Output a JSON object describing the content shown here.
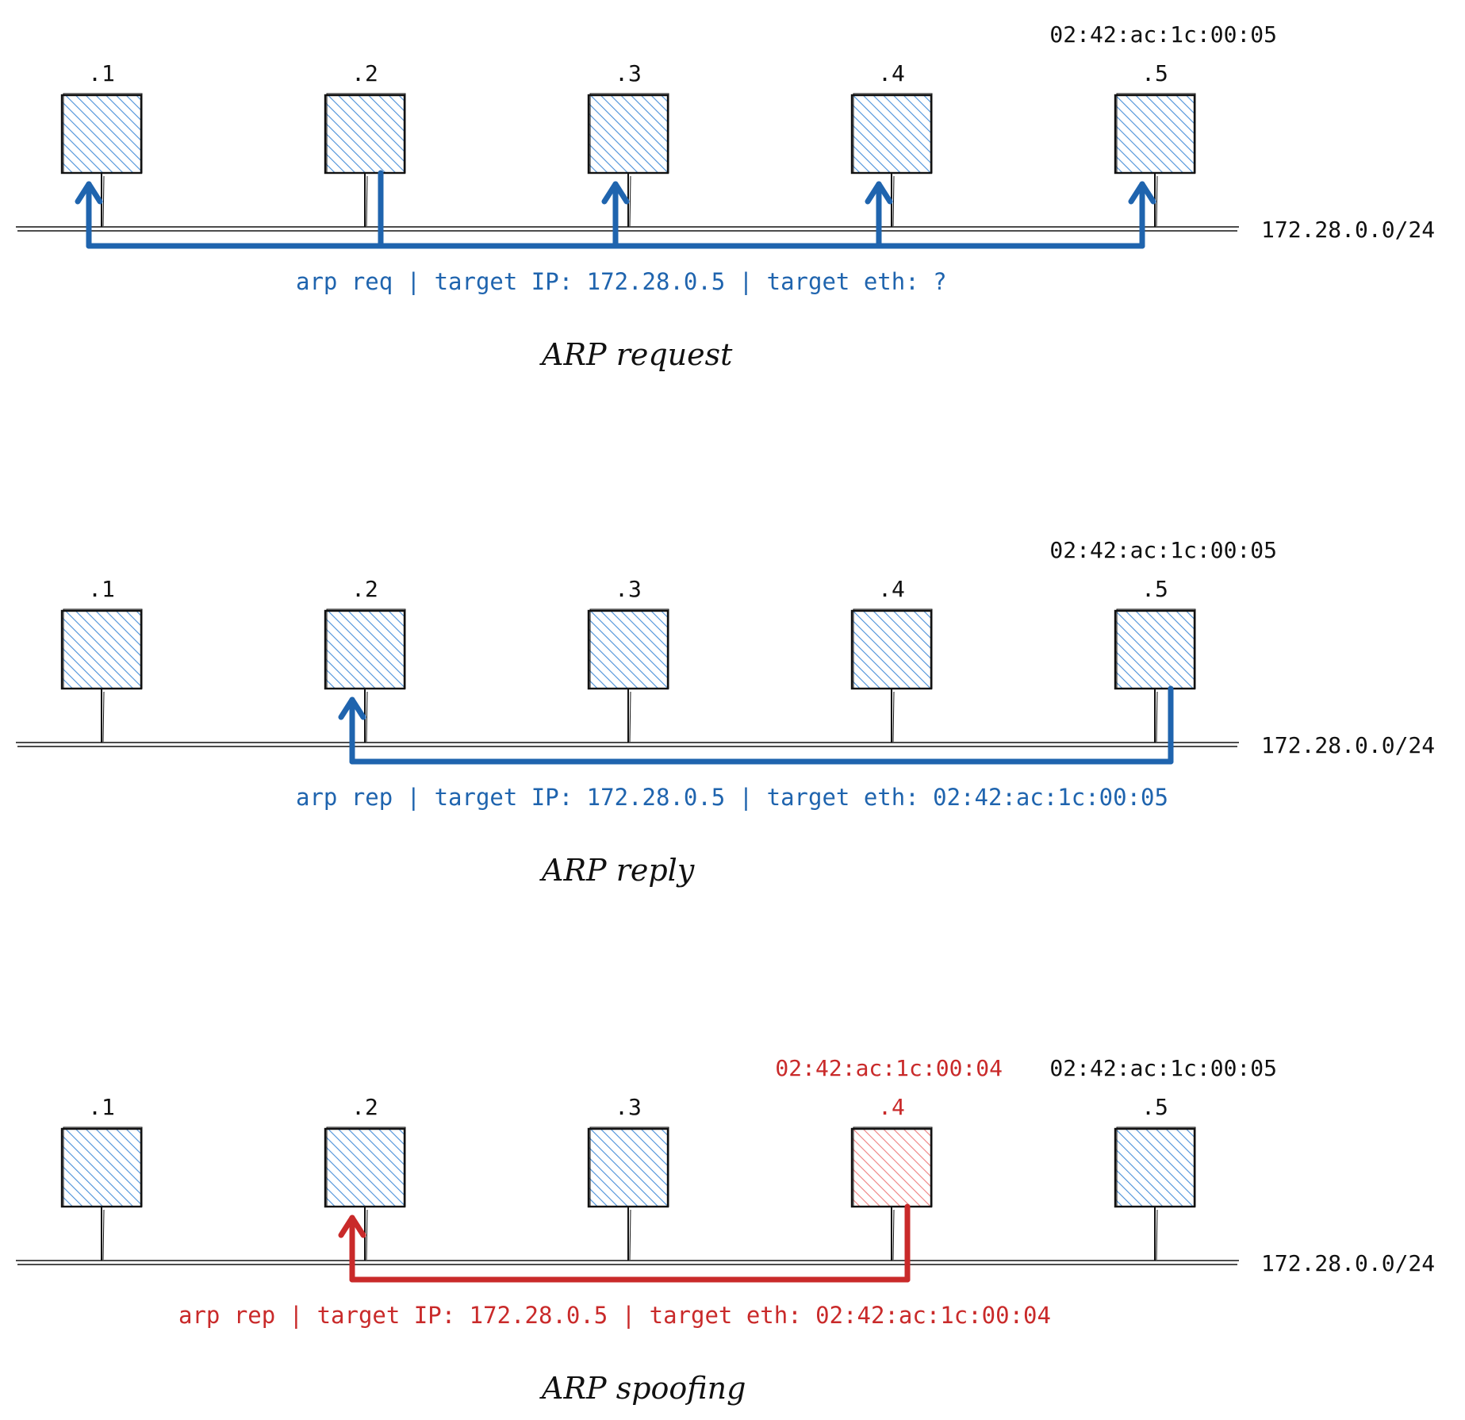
{
  "colors": {
    "blue": "#1f64ae",
    "blue_hatch": "#4a90d9",
    "red": "#c92a2a",
    "red_hatch": "#ee7f7f",
    "ink": "#111111"
  },
  "network_label": "172.28.0.0/24",
  "panels": [
    {
      "id": "request",
      "caption": "ARP request",
      "mac_labels": [
        {
          "text": "02:42:ac:1c:00:05",
          "host": 5,
          "color": "ink"
        }
      ],
      "hosts": [
        {
          "label": ".1",
          "fill": "blue"
        },
        {
          "label": ".2",
          "fill": "blue"
        },
        {
          "label": ".3",
          "fill": "blue"
        },
        {
          "label": ".4",
          "fill": "blue"
        },
        {
          "label": ".5",
          "fill": "blue"
        }
      ],
      "packet_label": "arp req | target IP: 172.28.0.5 | target eth: ?",
      "packet_color": "blue",
      "packet": {
        "source": 2,
        "destinations": [
          1,
          3,
          4,
          5
        ]
      }
    },
    {
      "id": "reply",
      "caption": "ARP reply",
      "mac_labels": [
        {
          "text": "02:42:ac:1c:00:05",
          "host": 5,
          "color": "ink"
        }
      ],
      "hosts": [
        {
          "label": ".1",
          "fill": "blue"
        },
        {
          "label": ".2",
          "fill": "blue"
        },
        {
          "label": ".3",
          "fill": "blue"
        },
        {
          "label": ".4",
          "fill": "blue"
        },
        {
          "label": ".5",
          "fill": "blue"
        }
      ],
      "packet_label": "arp rep | target IP: 172.28.0.5 | target eth: 02:42:ac:1c:00:05",
      "packet_color": "blue",
      "packet": {
        "source": 5,
        "destinations": [
          2
        ]
      }
    },
    {
      "id": "spoofing",
      "caption": "ARP spoofing",
      "mac_labels": [
        {
          "text": "02:42:ac:1c:00:04",
          "host": 4,
          "color": "red"
        },
        {
          "text": "02:42:ac:1c:00:05",
          "host": 5,
          "color": "ink"
        }
      ],
      "hosts": [
        {
          "label": ".1",
          "fill": "blue"
        },
        {
          "label": ".2",
          "fill": "blue"
        },
        {
          "label": ".3",
          "fill": "blue"
        },
        {
          "label": ".4",
          "fill": "red"
        },
        {
          "label": ".5",
          "fill": "blue"
        }
      ],
      "packet_label": "arp rep | target IP: 172.28.0.5 | target eth: 02:42:ac:1c:00:04",
      "packet_color": "red",
      "packet": {
        "source": 4,
        "destinations": [
          2
        ]
      }
    }
  ]
}
